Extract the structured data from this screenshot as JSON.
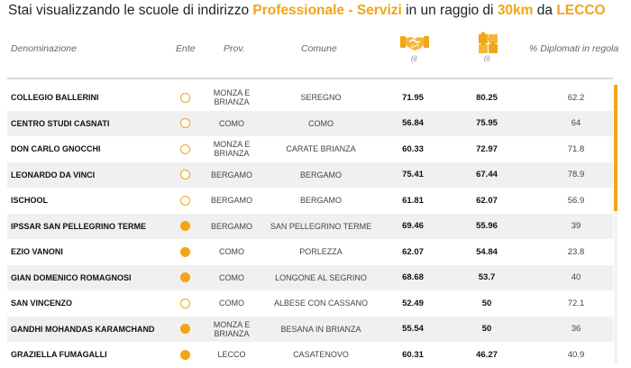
{
  "title": {
    "prefix": "Stai visualizzando le scuole di indirizzo",
    "indirizzo": "Professionale - Servizi",
    "middle": "in un raggio di",
    "raggio": "30km",
    "connector": "da",
    "citta": "LECCO"
  },
  "columns": {
    "denominazione": "Denominazione",
    "ente": "Ente",
    "prov": "Prov.",
    "comune": "Comune",
    "indice1_info": "(i)",
    "indice2_info": "(i)",
    "diplomati": "% Diplomati in regola",
    "indice1_icon": "handshake-icon",
    "indice2_icon": "puzzle-icon"
  },
  "colors": {
    "accent": "#f2a519"
  },
  "rows": [
    {
      "name": "COLLEGIO BALLERINI",
      "ente": "paritaria",
      "prov": "MONZA E BRIANZA",
      "comune": "SEREGNO",
      "v1": "71.95",
      "v2": "80.25",
      "pct": "62.2"
    },
    {
      "name": "CENTRO STUDI CASNATI",
      "ente": "paritaria",
      "prov": "COMO",
      "comune": "COMO",
      "v1": "56.84",
      "v2": "75.95",
      "pct": "64"
    },
    {
      "name": "DON CARLO GNOCCHI",
      "ente": "paritaria",
      "prov": "MONZA E BRIANZA",
      "comune": "CARATE BRIANZA",
      "v1": "60.33",
      "v2": "72.97",
      "pct": "71.8"
    },
    {
      "name": "LEONARDO DA VINCI",
      "ente": "paritaria",
      "prov": "BERGAMO",
      "comune": "BERGAMO",
      "v1": "75.41",
      "v2": "67.44",
      "pct": "78.9"
    },
    {
      "name": "ISCHOOL",
      "ente": "paritaria",
      "prov": "BERGAMO",
      "comune": "BERGAMO",
      "v1": "61.81",
      "v2": "62.07",
      "pct": "56.9"
    },
    {
      "name": "IPSSAR SAN PELLEGRINO TERME",
      "ente": "statale",
      "prov": "BERGAMO",
      "comune": "SAN PELLEGRINO TERME",
      "v1": "69.46",
      "v2": "55.96",
      "pct": "39"
    },
    {
      "name": "EZIO VANONI",
      "ente": "statale",
      "prov": "COMO",
      "comune": "PORLEZZA",
      "v1": "62.07",
      "v2": "54.84",
      "pct": "23.8"
    },
    {
      "name": "GIAN DOMENICO ROMAGNOSI",
      "ente": "statale",
      "prov": "COMO",
      "comune": "LONGONE AL SEGRINO",
      "v1": "68.68",
      "v2": "53.7",
      "pct": "40"
    },
    {
      "name": "SAN VINCENZO",
      "ente": "paritaria",
      "prov": "COMO",
      "comune": "ALBESE CON CASSANO",
      "v1": "52.49",
      "v2": "50",
      "pct": "72.1"
    },
    {
      "name": "GANDHI MOHANDAS KARAMCHAND",
      "ente": "statale",
      "prov": "MONZA E BRIANZA",
      "comune": "BESANA IN BRIANZA",
      "v1": "55.54",
      "v2": "50",
      "pct": "36"
    },
    {
      "name": "GRAZIELLA FUMAGALLI",
      "ente": "statale",
      "prov": "LECCO",
      "comune": "CASATENOVO",
      "v1": "60.31",
      "v2": "46.27",
      "pct": "40.9"
    }
  ]
}
